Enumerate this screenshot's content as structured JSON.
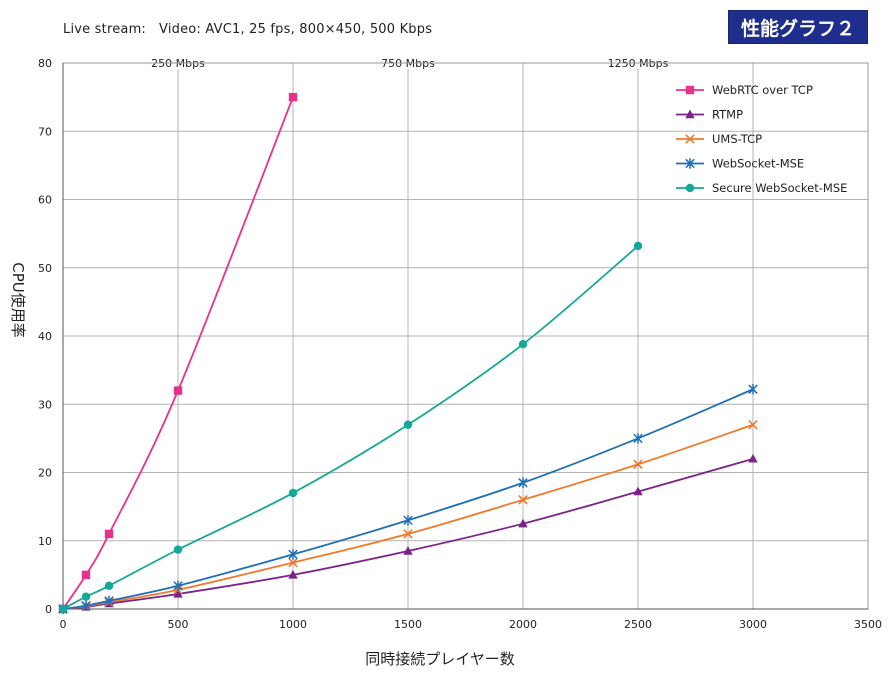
{
  "header": {
    "subtitle": "Live stream:   Video: AVC1, 25 fps, 800×450, 500 Kbps",
    "badge": "性能グラフ２"
  },
  "chart_data": {
    "type": "line",
    "xlabel": "同時接続プレイヤー数",
    "ylabel": "CPU使用率",
    "xlim": [
      0,
      3500
    ],
    "ylim": [
      0,
      80
    ],
    "xticks": [
      0,
      500,
      1000,
      1500,
      2000,
      2500,
      3000,
      3500
    ],
    "yticks": [
      0,
      10,
      20,
      30,
      40,
      50,
      60,
      70,
      80
    ],
    "grid": true,
    "legend_position": "top-right",
    "bandwidth_labels": [
      {
        "x": 500,
        "label": "250 Mbps"
      },
      {
        "x": 1500,
        "label": "750 Mbps"
      },
      {
        "x": 2500,
        "label": "1250 Mbps"
      }
    ],
    "series": [
      {
        "name": "WebRTC over TCP",
        "color": "#e8318b",
        "marker": "square",
        "x": [
          0,
          100,
          200,
          500,
          1000
        ],
        "y": [
          0,
          5,
          11,
          32,
          75
        ]
      },
      {
        "name": "RTMP",
        "color": "#7b2389",
        "marker": "triangle",
        "x": [
          0,
          100,
          200,
          500,
          1000,
          1500,
          2000,
          2500,
          3000
        ],
        "y": [
          0,
          0.3,
          0.8,
          2.2,
          5,
          8.5,
          12.5,
          17.2,
          22
        ]
      },
      {
        "name": "UMS-TCP",
        "color": "#f07a2c",
        "marker": "x",
        "x": [
          0,
          100,
          200,
          500,
          1000,
          1500,
          2000,
          2500,
          3000
        ],
        "y": [
          0,
          0.4,
          1,
          2.8,
          6.8,
          11,
          16,
          21.2,
          27
        ]
      },
      {
        "name": "WebSocket-MSE",
        "color": "#1e6fb8",
        "marker": "star",
        "x": [
          0,
          100,
          200,
          500,
          1000,
          1500,
          2000,
          2500,
          3000
        ],
        "y": [
          0,
          0.5,
          1.2,
          3.4,
          8,
          13,
          18.5,
          25,
          32.2
        ]
      },
      {
        "name": "Secure WebSocket-MSE",
        "color": "#14a898",
        "marker": "circle",
        "x": [
          0,
          100,
          200,
          500,
          1000,
          1500,
          2000,
          2500
        ],
        "y": [
          0,
          1.8,
          3.4,
          8.7,
          17,
          27,
          38.8,
          53.2
        ]
      }
    ]
  }
}
